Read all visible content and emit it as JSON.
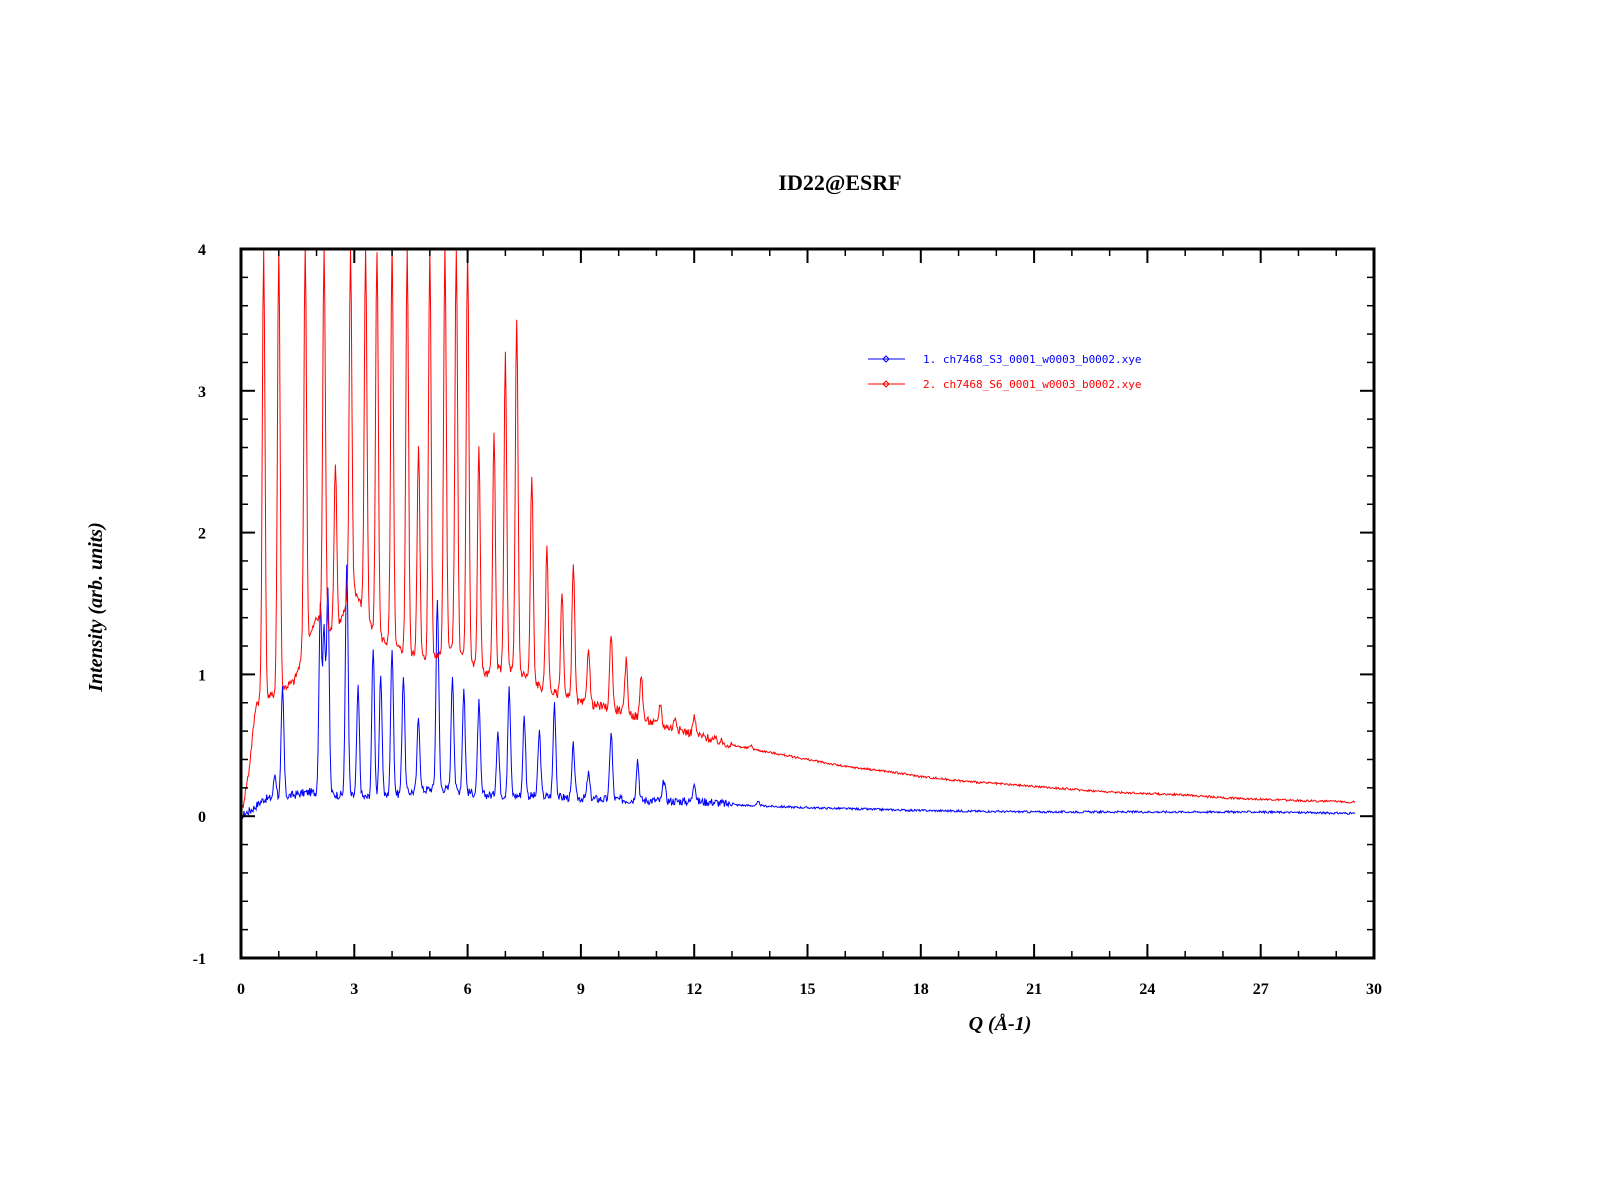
{
  "chart_data": {
    "type": "scatter",
    "title": "ID22@ESRF",
    "xlabel": "Q (Å-1)",
    "ylabel": "Intensity (arb. units)",
    "xlim": [
      0,
      30
    ],
    "ylim": [
      -1,
      4
    ],
    "x_ticks": [
      0,
      3,
      6,
      9,
      12,
      15,
      18,
      21,
      24,
      27,
      30
    ],
    "y_ticks": [
      -1,
      0,
      1,
      2,
      3,
      4
    ],
    "x_tick_labels": [
      "0",
      "3",
      "6",
      "9",
      "12",
      "15",
      "18",
      "21",
      "24",
      "27",
      "30"
    ],
    "y_tick_labels": [
      "-1",
      "0",
      "1",
      "2",
      "3",
      "4"
    ],
    "legend_position": "top-right",
    "marker": "open-diamond",
    "grid": false,
    "series": [
      {
        "name": "1.  ch7468_S3_0001_w0003_b0002.xye",
        "color": "#0000ff",
        "baseline": [
          [
            0,
            0
          ],
          [
            0.3,
            0.05
          ],
          [
            0.6,
            0.12
          ],
          [
            1.2,
            0.14
          ],
          [
            1.8,
            0.17
          ],
          [
            2.6,
            0.15
          ],
          [
            3.5,
            0.13
          ],
          [
            5.2,
            0.2
          ],
          [
            6.5,
            0.15
          ],
          [
            8,
            0.14
          ],
          [
            9.5,
            0.12
          ],
          [
            11,
            0.11
          ],
          [
            12.5,
            0.1
          ],
          [
            13,
            0.08
          ],
          [
            15,
            0.06
          ],
          [
            18,
            0.04
          ],
          [
            21,
            0.03
          ],
          [
            24,
            0.03
          ],
          [
            27,
            0.03
          ],
          [
            29.5,
            0.02
          ]
        ],
        "peaks": [
          [
            0.9,
            0.3
          ],
          [
            1.1,
            0.9
          ],
          [
            2.1,
            1.5
          ],
          [
            2.2,
            1.3
          ],
          [
            2.3,
            1.6
          ],
          [
            2.8,
            1.8
          ],
          [
            3.1,
            0.9
          ],
          [
            3.5,
            1.2
          ],
          [
            3.7,
            1.0
          ],
          [
            4.0,
            1.2
          ],
          [
            4.3,
            1.0
          ],
          [
            4.7,
            0.7
          ],
          [
            5.2,
            1.55
          ],
          [
            5.6,
            1.0
          ],
          [
            5.9,
            0.9
          ],
          [
            6.3,
            0.8
          ],
          [
            6.8,
            0.6
          ],
          [
            7.1,
            0.9
          ],
          [
            7.5,
            0.7
          ],
          [
            7.9,
            0.6
          ],
          [
            8.3,
            0.8
          ],
          [
            8.8,
            0.5
          ],
          [
            9.2,
            0.3
          ],
          [
            9.8,
            0.6
          ],
          [
            10.5,
            0.4
          ],
          [
            11.2,
            0.25
          ],
          [
            12.0,
            0.25
          ],
          [
            13.0,
            0.1
          ],
          [
            13.7,
            0.1
          ]
        ]
      },
      {
        "name": "2.  ch7468_S6_0001_w0003_b0002.xye",
        "color": "#ff0000",
        "baseline": [
          [
            0,
            0
          ],
          [
            0.2,
            0.3
          ],
          [
            0.4,
            0.8
          ],
          [
            0.8,
            0.85
          ],
          [
            1.4,
            0.95
          ],
          [
            2.0,
            1.4
          ],
          [
            2.5,
            1.3
          ],
          [
            3.0,
            1.6
          ],
          [
            3.5,
            1.3
          ],
          [
            4.0,
            1.2
          ],
          [
            4.5,
            1.15
          ],
          [
            5.0,
            1.1
          ],
          [
            5.5,
            1.2
          ],
          [
            6.0,
            1.1
          ],
          [
            6.5,
            1.0
          ],
          [
            7.0,
            1.05
          ],
          [
            7.5,
            1.0
          ],
          [
            8.0,
            0.9
          ],
          [
            8.5,
            0.85
          ],
          [
            9.0,
            0.8
          ],
          [
            10,
            0.75
          ],
          [
            11,
            0.65
          ],
          [
            12,
            0.58
          ],
          [
            13,
            0.5
          ],
          [
            14,
            0.45
          ],
          [
            15,
            0.4
          ],
          [
            16,
            0.35
          ],
          [
            17,
            0.32
          ],
          [
            18,
            0.28
          ],
          [
            19,
            0.25
          ],
          [
            20,
            0.23
          ],
          [
            21,
            0.21
          ],
          [
            22,
            0.19
          ],
          [
            23,
            0.17
          ],
          [
            24,
            0.16
          ],
          [
            25,
            0.15
          ],
          [
            26,
            0.13
          ],
          [
            27,
            0.12
          ],
          [
            28,
            0.11
          ],
          [
            29.5,
            0.1
          ]
        ],
        "peaks": [
          [
            0.6,
            4
          ],
          [
            1.0,
            4
          ],
          [
            1.7,
            4
          ],
          [
            2.2,
            4
          ],
          [
            2.5,
            2.5
          ],
          [
            2.9,
            4
          ],
          [
            3.3,
            4
          ],
          [
            3.6,
            4
          ],
          [
            4.0,
            4
          ],
          [
            4.4,
            4
          ],
          [
            4.7,
            2.6
          ],
          [
            5.0,
            4
          ],
          [
            5.4,
            4
          ],
          [
            5.7,
            4
          ],
          [
            6.0,
            4
          ],
          [
            6.3,
            2.6
          ],
          [
            6.7,
            2.7
          ],
          [
            7.0,
            3.25
          ],
          [
            7.3,
            3.5
          ],
          [
            7.7,
            2.4
          ],
          [
            8.1,
            1.9
          ],
          [
            8.5,
            1.6
          ],
          [
            8.8,
            1.8
          ],
          [
            9.2,
            1.2
          ],
          [
            9.8,
            1.3
          ],
          [
            10.2,
            1.1
          ],
          [
            10.6,
            1.0
          ],
          [
            11.1,
            0.8
          ],
          [
            11.5,
            0.7
          ],
          [
            12.0,
            0.7
          ],
          [
            13.5,
            0.5
          ]
        ]
      }
    ]
  }
}
